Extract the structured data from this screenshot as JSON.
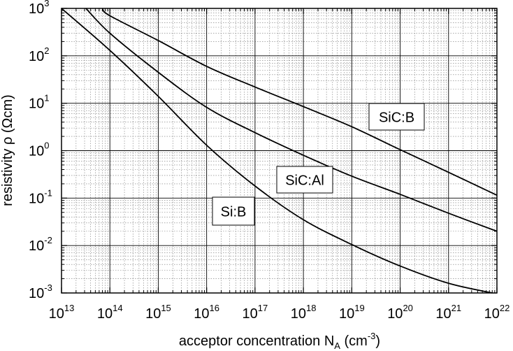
{
  "chart_data": {
    "type": "line",
    "title": "",
    "xlabel": {
      "main": "acceptor concentration N",
      "sub": "A",
      "unit_open": " (cm",
      "unit_sup": "-3",
      "unit_close": ")"
    },
    "ylabel": "resistivity ρ (Ωcm)",
    "x_scale": "log",
    "y_scale": "log",
    "xlim": [
      10000000000000.0,
      1e+22
    ],
    "ylim": [
      0.001,
      1000
    ],
    "grid": true,
    "x_ticks": [
      {
        "base": "10",
        "exp": "13"
      },
      {
        "base": "10",
        "exp": "14"
      },
      {
        "base": "10",
        "exp": "15"
      },
      {
        "base": "10",
        "exp": "16"
      },
      {
        "base": "10",
        "exp": "17"
      },
      {
        "base": "10",
        "exp": "18"
      },
      {
        "base": "10",
        "exp": "19"
      },
      {
        "base": "10",
        "exp": "20"
      },
      {
        "base": "10",
        "exp": "21"
      },
      {
        "base": "10",
        "exp": "22"
      }
    ],
    "y_ticks": [
      {
        "base": "10",
        "exp": "-3"
      },
      {
        "base": "10",
        "exp": "-2"
      },
      {
        "base": "10",
        "exp": "-1"
      },
      {
        "base": "10",
        "exp": "0"
      },
      {
        "base": "10",
        "exp": "1"
      },
      {
        "base": "10",
        "exp": "2"
      },
      {
        "base": "10",
        "exp": "3"
      }
    ],
    "series": [
      {
        "name": "Si:B",
        "x": [
          10000000000000.0,
          100000000000000.0,
          1000000000000000.0,
          1e+16,
          1e+17,
          1e+18,
          1e+19,
          1e+20,
          1e+21,
          8e+21
        ],
        "y": [
          1000,
          130,
          14,
          1.3,
          0.18,
          0.035,
          0.0105,
          0.0037,
          0.0016,
          0.001
        ]
      },
      {
        "name": "SiC:Al",
        "x": [
          32000000000000.0,
          100000000000000.0,
          1000000000000000.0,
          1e+16,
          1e+17,
          1e+18,
          1e+19,
          1e+20,
          1e+21,
          1e+22
        ],
        "y": [
          1000,
          300,
          45,
          8.2,
          2.4,
          0.8,
          0.29,
          0.12,
          0.048,
          0.02
        ]
      },
      {
        "name": "SiC:B",
        "x": [
          70000000000000.0,
          100000000000000.0,
          1000000000000000.0,
          1e+16,
          1e+17,
          1e+18,
          1e+19,
          1e+20,
          1e+21,
          1e+22
        ],
        "y": [
          1000,
          700,
          210,
          60,
          22,
          8.5,
          3.2,
          1.05,
          0.35,
          0.115
        ]
      }
    ]
  }
}
